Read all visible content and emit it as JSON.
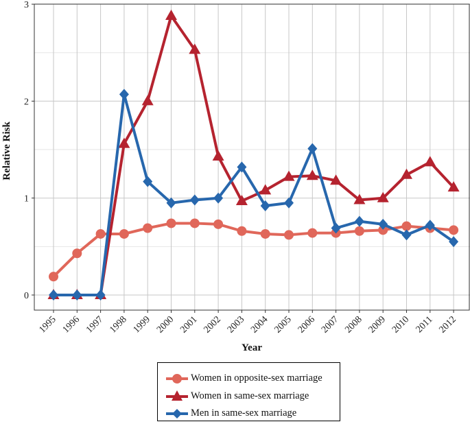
{
  "chart_data": {
    "type": "line",
    "title": "",
    "xlabel": "Year",
    "ylabel": "Relative Risk",
    "x": [
      "1995",
      "1996",
      "1997",
      "1998",
      "1999",
      "2000",
      "2001",
      "2002",
      "2003",
      "2004",
      "2005",
      "2006",
      "2007",
      "2008",
      "2009",
      "2010",
      "2011",
      "2012"
    ],
    "ylim": [
      0,
      3
    ],
    "yticks": [
      "0",
      "1",
      "2",
      "3"
    ],
    "grid": true,
    "legend_position": "bottom",
    "series": [
      {
        "name": "Women in opposite-sex marriage",
        "color": "#e0675a",
        "marker": "circle",
        "values": [
          0.19,
          0.43,
          0.63,
          0.63,
          0.69,
          0.74,
          0.74,
          0.73,
          0.66,
          0.63,
          0.62,
          0.64,
          0.64,
          0.66,
          0.67,
          0.71,
          0.69,
          0.67
        ]
      },
      {
        "name": "Women in same-sex marriage",
        "color": "#b5232f",
        "marker": "triangle",
        "values": [
          0,
          0,
          0,
          1.56,
          2.0,
          2.88,
          2.53,
          1.43,
          0.97,
          1.08,
          1.22,
          1.23,
          1.18,
          0.98,
          1.0,
          1.24,
          1.37,
          1.11
        ]
      },
      {
        "name": "Men in same-sex marriage",
        "color": "#2767ad",
        "marker": "diamond",
        "values": [
          0,
          0,
          0,
          2.07,
          1.17,
          0.95,
          0.98,
          1.0,
          1.32,
          0.92,
          0.95,
          1.51,
          0.69,
          0.76,
          0.73,
          0.62,
          0.72,
          0.55
        ]
      }
    ]
  }
}
